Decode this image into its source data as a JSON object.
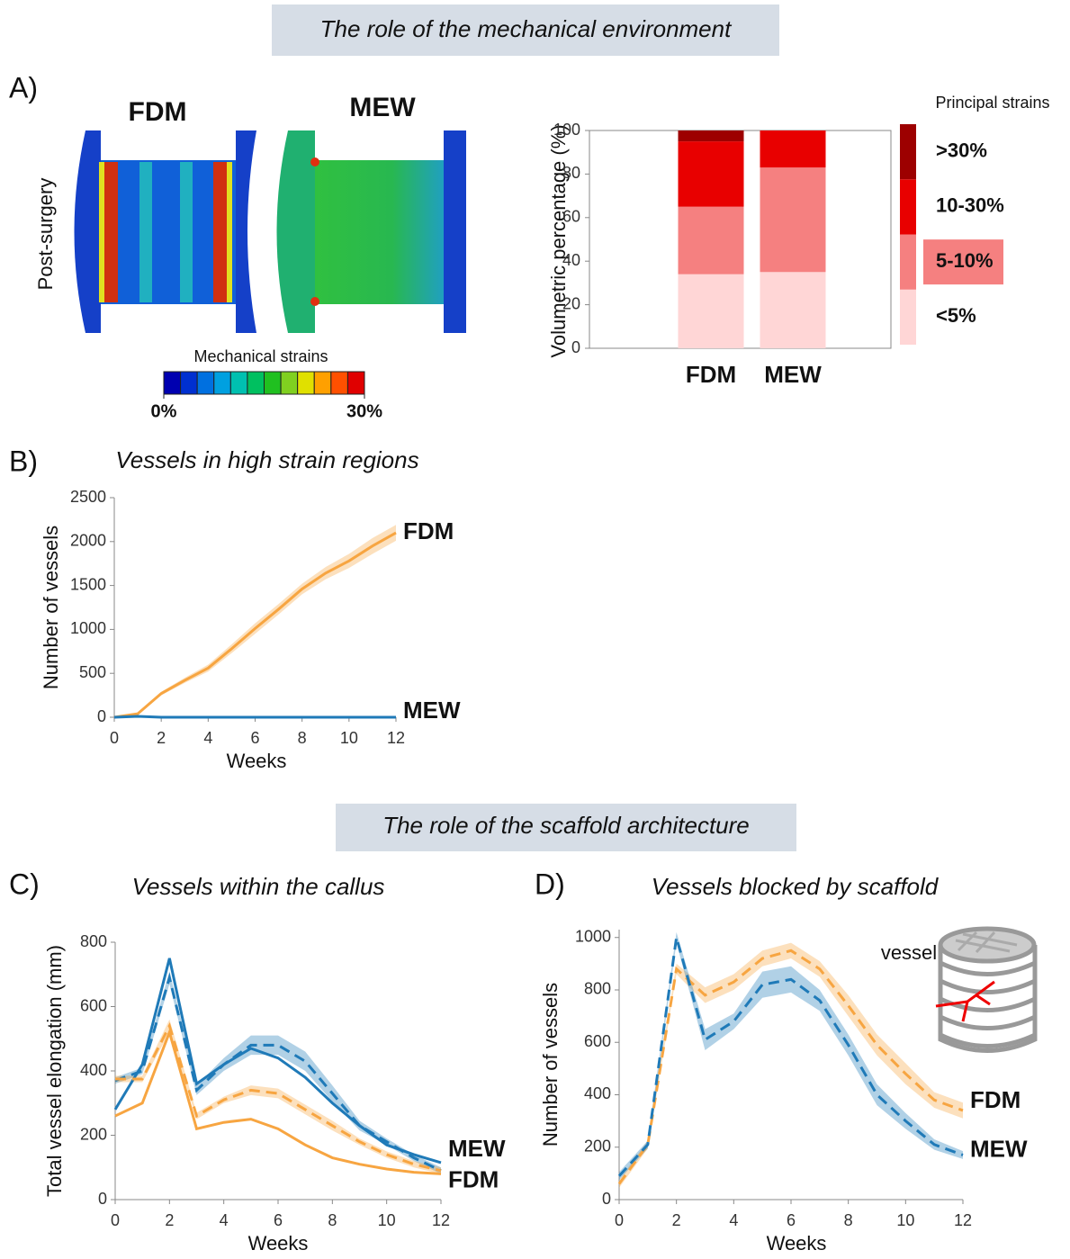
{
  "headers": [
    "The role of the mechanical environment",
    "The role of the scaffold architecture"
  ],
  "panel_labels": [
    "A)",
    "B)",
    "C)",
    "D)"
  ],
  "fe_maps": {
    "titles": [
      "FDM",
      "MEW"
    ],
    "title_colors": [
      "#f7a541",
      "#1f7ab8"
    ],
    "row_label": "Post-surgery",
    "colorbar": {
      "title": "Mechanical strains",
      "lim": [
        0,
        30
      ],
      "ticks": [
        {
          "value": 0,
          "label": "0%"
        },
        {
          "value": 30,
          "label": "30%"
        }
      ],
      "colors": [
        "#0000b0",
        "#0030d0",
        "#0070e0",
        "#00a0e0",
        "#00c0b0",
        "#00c060",
        "#20c020",
        "#80d020",
        "#e0e000",
        "#ffa000",
        "#ff5000",
        "#e00000"
      ]
    }
  },
  "chart_data": [
    {
      "type": "stacked-bar",
      "ylabel": "Volumetric percentage (%)",
      "categories": [
        "FDM",
        "MEW"
      ],
      "category_colors": [
        "#f7a541",
        "#1f7ab8"
      ],
      "ylim": [
        0,
        100
      ],
      "yticks": [
        0,
        20,
        40,
        60,
        80,
        100
      ],
      "legend_title": "Principal strains",
      "series": [
        {
          "name": "<5%",
          "color": "#ffd6d6",
          "values": [
            34,
            35
          ]
        },
        {
          "name": "5-10%",
          "color": "#f58080",
          "values": [
            31,
            48
          ],
          "highlight": true
        },
        {
          "name": "10-30%",
          "color": "#e80000",
          "values": [
            30,
            17
          ]
        },
        {
          "name": ">30%",
          "color": "#9d0000",
          "values": [
            5,
            0
          ]
        }
      ]
    },
    {
      "type": "line",
      "title": "Vessels in high strain regions",
      "xlabel": "Weeks",
      "ylabel": "Number of vessels",
      "x": [
        0,
        1,
        2,
        3,
        4,
        5,
        6,
        7,
        8,
        9,
        10,
        11,
        12
      ],
      "xlim": [
        0,
        12
      ],
      "xticks": [
        0,
        2,
        4,
        6,
        8,
        10,
        12
      ],
      "ylim": [
        0,
        2500
      ],
      "yticks": [
        0,
        500,
        1000,
        1500,
        2000,
        2500
      ],
      "series": [
        {
          "name": "FDM",
          "color": "#f7a541",
          "lines": [
            {
              "style": "solid",
              "values": [
                0,
                40,
                270,
                420,
                560,
                780,
                1010,
                1230,
                1460,
                1640,
                1780,
                1950,
                2100
              ],
              "errors": [
                0,
                10,
                20,
                30,
                40,
                50,
                60,
                60,
                60,
                70,
                80,
                90,
                90
              ]
            }
          ]
        },
        {
          "name": "MEW",
          "color": "#1f7ab8",
          "lines": [
            {
              "style": "solid",
              "values": [
                0,
                10,
                0,
                0,
                0,
                0,
                0,
                0,
                0,
                0,
                0,
                0,
                0
              ]
            }
          ]
        }
      ]
    },
    {
      "type": "line",
      "title": "Vessels within the callus",
      "xlabel": "Weeks",
      "ylabel": "Total vessel elongation (mm)",
      "x": [
        0,
        1,
        2,
        3,
        4,
        5,
        6,
        7,
        8,
        9,
        10,
        11,
        12
      ],
      "xlim": [
        0,
        12
      ],
      "xticks": [
        0,
        2,
        4,
        6,
        8,
        10,
        12
      ],
      "ylim": [
        0,
        800
      ],
      "yticks": [
        0,
        200,
        400,
        600,
        800
      ],
      "series": [
        {
          "name": "MEW",
          "color": "#1f7ab8",
          "lines": [
            {
              "style": "solid",
              "values": [
                280,
                420,
                750,
                360,
                420,
                470,
                440,
                380,
                300,
                230,
                170,
                140,
                115
              ]
            },
            {
              "style": "dashed",
              "values": [
                370,
                400,
                690,
                340,
                420,
                480,
                480,
                430,
                330,
                230,
                180,
                130,
                90
              ],
              "errors": [
                10,
                10,
                20,
                15,
                20,
                30,
                30,
                30,
                25,
                15,
                10,
                10,
                10
              ]
            }
          ]
        },
        {
          "name": "FDM",
          "color": "#f7a541",
          "lines": [
            {
              "style": "solid",
              "values": [
                260,
                300,
                520,
                220,
                240,
                250,
                220,
                170,
                130,
                110,
                95,
                85,
                80
              ]
            },
            {
              "style": "dashed",
              "values": [
                375,
                375,
                540,
                260,
                310,
                340,
                330,
                280,
                230,
                180,
                140,
                110,
                90
              ],
              "errors": [
                10,
                10,
                20,
                10,
                10,
                15,
                15,
                15,
                15,
                10,
                10,
                10,
                10
              ]
            }
          ]
        }
      ]
    },
    {
      "type": "line",
      "title": "Vessels blocked by scaffold",
      "xlabel": "Weeks",
      "ylabel": "Number of vessels",
      "annotation": "vessel",
      "x": [
        0,
        1,
        2,
        3,
        4,
        5,
        6,
        7,
        8,
        9,
        10,
        11,
        12
      ],
      "xlim": [
        0,
        12
      ],
      "xticks": [
        0,
        2,
        4,
        6,
        8,
        10,
        12
      ],
      "ylim": [
        0,
        1030
      ],
      "yticks": [
        0,
        200,
        400,
        600,
        800,
        1000
      ],
      "series": [
        {
          "name": "FDM",
          "color": "#f7a541",
          "lines": [
            {
              "style": "dashed",
              "values": [
                60,
                210,
                880,
                780,
                830,
                920,
                950,
                880,
                740,
                590,
                480,
                380,
                340
              ],
              "errors": [
                15,
                15,
                20,
                30,
                30,
                30,
                30,
                30,
                40,
                40,
                40,
                30,
                30
              ]
            }
          ]
        },
        {
          "name": "MEW",
          "color": "#1f7ab8",
          "lines": [
            {
              "style": "dashed",
              "values": [
                90,
                210,
                1000,
                610,
                680,
                820,
                840,
                760,
                590,
                400,
                300,
                210,
                170
              ],
              "errors": [
                15,
                15,
                20,
                40,
                30,
                50,
                50,
                40,
                40,
                40,
                30,
                20,
                15
              ]
            }
          ]
        }
      ]
    }
  ]
}
